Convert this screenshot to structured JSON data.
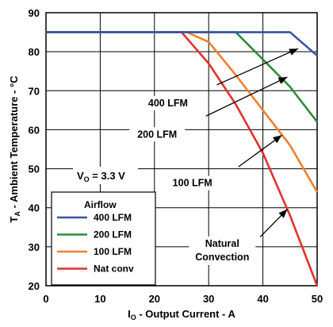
{
  "chart_data": {
    "type": "line",
    "xlabel": {
      "main": "I",
      "sub": "O",
      "rest": " - Output Current - A"
    },
    "ylabel": {
      "main": "T",
      "sub": "A",
      "rest": " - Ambient Temperature - °C"
    },
    "xlim": [
      0,
      50
    ],
    "ylim": [
      20,
      90
    ],
    "xticks": [
      0,
      10,
      20,
      30,
      40,
      50
    ],
    "yticks": [
      20,
      30,
      40,
      50,
      60,
      70,
      80,
      90
    ],
    "grid": true,
    "legend": {
      "title": "Airflow",
      "position": "bottom-left"
    },
    "series": [
      {
        "name": "400 LFM",
        "color": "#3953a4",
        "x": [
          0,
          45,
          50
        ],
        "y": [
          85,
          85,
          79
        ]
      },
      {
        "name": "200 LFM",
        "color": "#2e8b3e",
        "x": [
          0,
          35,
          40,
          45,
          50
        ],
        "y": [
          85,
          85,
          78,
          71,
          62
        ]
      },
      {
        "name": "100 LFM",
        "color": "#f08030",
        "x": [
          0,
          26,
          30,
          35,
          40,
          45,
          50
        ],
        "y": [
          85,
          85,
          82.5,
          74,
          65,
          56,
          44
        ]
      },
      {
        "name": "Nat conv",
        "color": "#e0322b",
        "x": [
          0,
          25,
          30,
          35,
          40,
          45,
          50
        ],
        "y": [
          85,
          85,
          77,
          66.5,
          54,
          38,
          20
        ]
      }
    ],
    "annotations": [
      {
        "label": "400 LFM",
        "line1": "400 LFM",
        "line2": "",
        "tx": 22.5,
        "ty": 66
      },
      {
        "label": "200 LFM",
        "line1": "200 LFM",
        "line2": "",
        "tx": 20.5,
        "ty": 58
      },
      {
        "label": "100 LFM",
        "line1": "100 LFM",
        "line2": "",
        "tx": 27,
        "ty": 45.5
      },
      {
        "label": "Natural Convection",
        "line1": "Natural",
        "line2": "Convection",
        "tx": 32.5,
        "ty": 30
      }
    ],
    "condition": {
      "main": "V",
      "sub": "O",
      "rest": " = 3.3 V"
    }
  }
}
